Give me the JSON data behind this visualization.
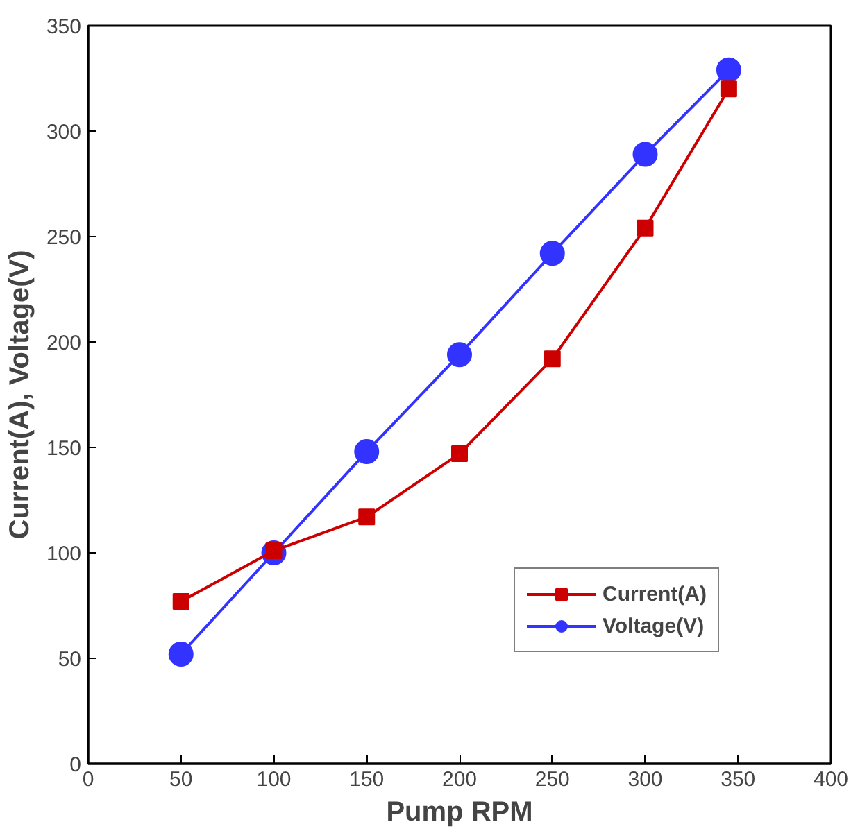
{
  "chart_data": {
    "type": "line",
    "xlabel": "Pump RPM",
    "ylabel": "Current(A), Voltage(V)",
    "x": [
      50,
      100,
      150,
      200,
      250,
      300,
      345
    ],
    "series": [
      {
        "name": "Current(A)",
        "color": "#cc0000",
        "marker": "square",
        "values": [
          77,
          101,
          117,
          147,
          192,
          254,
          320
        ]
      },
      {
        "name": "Voltage(V)",
        "color": "#3333ff",
        "marker": "circle",
        "values": [
          52,
          100,
          148,
          194,
          242,
          289,
          329
        ]
      }
    ],
    "xlim": [
      0,
      400
    ],
    "xticks": [
      0,
      50,
      100,
      150,
      200,
      250,
      300,
      350,
      400
    ],
    "ylim": [
      0,
      350
    ],
    "yticks": [
      0,
      50,
      100,
      150,
      200,
      250,
      300,
      350
    ],
    "grid": false,
    "legend": "bottom right",
    "line_style": "solid"
  }
}
